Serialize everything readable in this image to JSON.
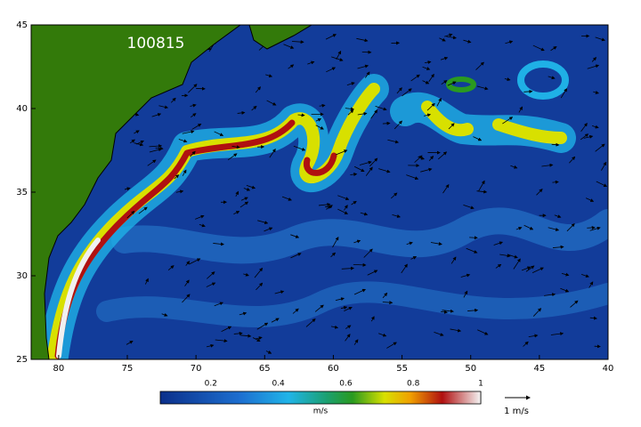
{
  "map": {
    "label": "100815",
    "lon_range": [
      82,
      40
    ],
    "lat_range": [
      25,
      45
    ],
    "lon_ticks": [
      80,
      75,
      70,
      65,
      60,
      55,
      50,
      45,
      40
    ],
    "lat_ticks": [
      25,
      30,
      35,
      40,
      45
    ],
    "colorbar": {
      "range": [
        0.05,
        1
      ],
      "ticks": [
        0.2,
        0.4,
        0.6,
        0.8,
        1
      ],
      "unit": "m/s"
    },
    "vector_scale": "1 m/s"
  }
}
